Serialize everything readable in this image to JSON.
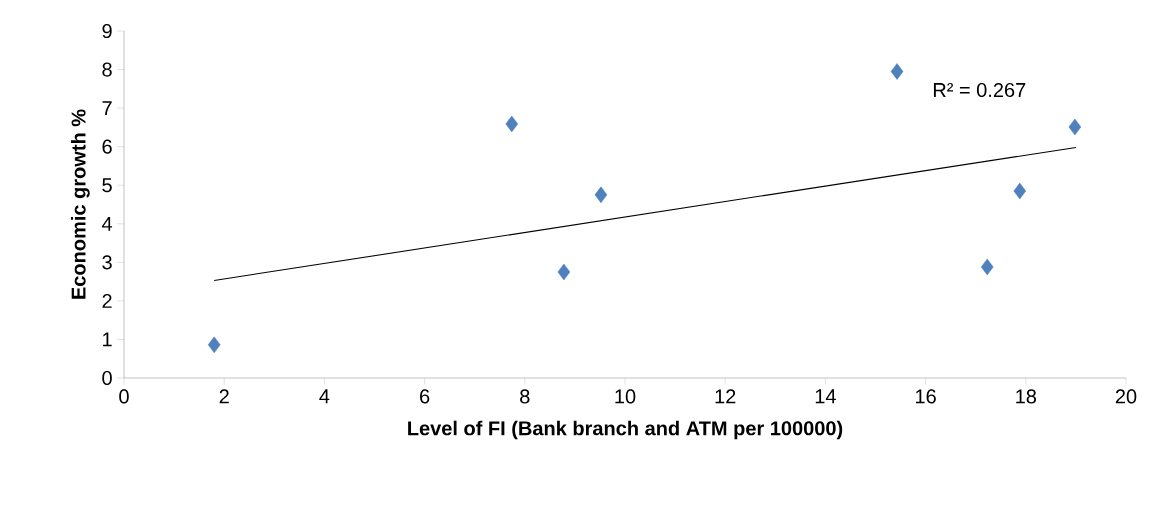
{
  "chart_data": {
    "type": "scatter",
    "xlabel": "Level of FI (Bank branch and ATM per 100000)",
    "ylabel": "Economic growth %",
    "xlim": [
      0,
      20
    ],
    "xticks": [
      0,
      2,
      4,
      6,
      8,
      10,
      12,
      14,
      16,
      18,
      20
    ],
    "ylim": [
      0,
      9
    ],
    "yticks": [
      0,
      1,
      2,
      3,
      4,
      5,
      6,
      7,
      8,
      9
    ],
    "grid": false,
    "series": [
      {
        "marker": "diamond",
        "color": "#4f81bd",
        "x": [
          1.8,
          7.74,
          8.78,
          9.52,
          15.43,
          17.23,
          17.88,
          18.98
        ],
        "values": [
          0.86,
          6.59,
          2.75,
          4.75,
          7.95,
          2.88,
          4.85,
          6.51
        ]
      },
      {
        "type": "line",
        "color": "#000000",
        "x": [
          1.8,
          19.0
        ],
        "values": [
          2.53,
          5.98
        ]
      }
    ],
    "annotations": [
      "R² = 0.267"
    ]
  }
}
